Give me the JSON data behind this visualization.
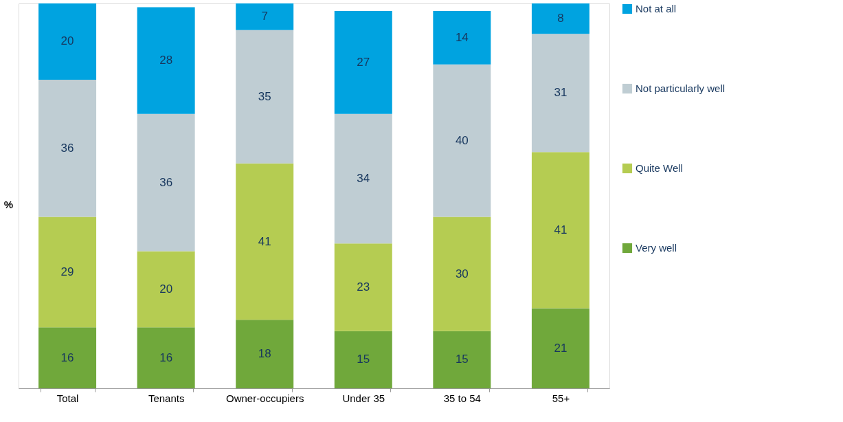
{
  "chart_data": {
    "type": "bar",
    "stacked": true,
    "ylabel": "%",
    "data_labels": true,
    "legend": "right",
    "grid": false,
    "categories": [
      "Total",
      "Tenants",
      "Owner-occupiers",
      "Under 35",
      "35 to 54",
      "55+"
    ],
    "series": [
      {
        "name": "Very well",
        "color": "#70a83b",
        "values": [
          16,
          16,
          18,
          15,
          15,
          21
        ]
      },
      {
        "name": "Quite Well",
        "color": "#b5cc52",
        "values": [
          29,
          20,
          41,
          23,
          30,
          41
        ]
      },
      {
        "name": "Not particularly well",
        "color": "#bfcdd3",
        "values": [
          36,
          36,
          35,
          34,
          40,
          31
        ]
      },
      {
        "name": "Not at all",
        "color": "#00a3e0",
        "values": [
          20,
          28,
          7,
          27,
          14,
          8
        ]
      }
    ]
  }
}
